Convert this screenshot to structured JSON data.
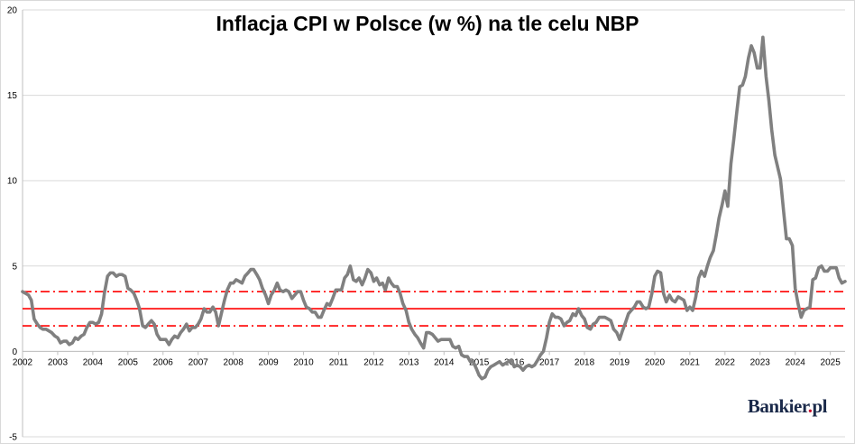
{
  "chart_data": {
    "type": "line",
    "title": "Inflacja CPI w Polsce (w %) na tle celu NBP",
    "xlabel": "",
    "ylabel": "",
    "ylim": [
      -5,
      20
    ],
    "xlim": [
      2002.0,
      2025.42
    ],
    "y_ticks": [
      -5,
      0,
      5,
      10,
      15,
      20
    ],
    "x_ticks": [
      "2002",
      "2003",
      "2004",
      "2005",
      "2006",
      "2007",
      "2008",
      "2009",
      "2010",
      "2011",
      "2012",
      "2013",
      "2014",
      "2015",
      "2016",
      "2017",
      "2018",
      "2019",
      "2020",
      "2021",
      "2022",
      "2023",
      "2024",
      "2025"
    ],
    "grid": "horizontal",
    "legend": "none",
    "series": [
      {
        "color": "#808080",
        "points": [
          [
            2002.0,
            3.5
          ],
          [
            2002.17,
            3.3
          ],
          [
            2002.25,
            3.0
          ],
          [
            2002.33,
            1.9
          ],
          [
            2002.42,
            1.6
          ],
          [
            2002.5,
            1.4
          ],
          [
            2002.58,
            1.3
          ],
          [
            2002.67,
            1.3
          ],
          [
            2002.75,
            1.2
          ],
          [
            2002.83,
            1.1
          ],
          [
            2002.92,
            0.9
          ],
          [
            2003.0,
            0.8
          ],
          [
            2003.08,
            0.5
          ],
          [
            2003.17,
            0.6
          ],
          [
            2003.25,
            0.6
          ],
          [
            2003.33,
            0.4
          ],
          [
            2003.42,
            0.5
          ],
          [
            2003.5,
            0.8
          ],
          [
            2003.58,
            0.7
          ],
          [
            2003.67,
            0.9
          ],
          [
            2003.75,
            1.0
          ],
          [
            2003.83,
            1.4
          ],
          [
            2003.92,
            1.7
          ],
          [
            2004.0,
            1.7
          ],
          [
            2004.08,
            1.6
          ],
          [
            2004.17,
            1.7
          ],
          [
            2004.25,
            2.2
          ],
          [
            2004.33,
            3.4
          ],
          [
            2004.42,
            4.4
          ],
          [
            2004.5,
            4.6
          ],
          [
            2004.58,
            4.6
          ],
          [
            2004.67,
            4.4
          ],
          [
            2004.75,
            4.5
          ],
          [
            2004.83,
            4.5
          ],
          [
            2004.92,
            4.4
          ],
          [
            2005.0,
            3.7
          ],
          [
            2005.08,
            3.6
          ],
          [
            2005.17,
            3.4
          ],
          [
            2005.25,
            3.0
          ],
          [
            2005.33,
            2.5
          ],
          [
            2005.42,
            1.5
          ],
          [
            2005.5,
            1.4
          ],
          [
            2005.58,
            1.6
          ],
          [
            2005.67,
            1.8
          ],
          [
            2005.75,
            1.6
          ],
          [
            2005.83,
            1.0
          ],
          [
            2005.92,
            0.7
          ],
          [
            2006.0,
            0.7
          ],
          [
            2006.08,
            0.7
          ],
          [
            2006.17,
            0.4
          ],
          [
            2006.25,
            0.7
          ],
          [
            2006.33,
            0.9
          ],
          [
            2006.42,
            0.8
          ],
          [
            2006.5,
            1.1
          ],
          [
            2006.58,
            1.3
          ],
          [
            2006.67,
            1.6
          ],
          [
            2006.75,
            1.2
          ],
          [
            2006.83,
            1.4
          ],
          [
            2006.92,
            1.4
          ],
          [
            2007.0,
            1.6
          ],
          [
            2007.08,
            1.9
          ],
          [
            2007.17,
            2.5
          ],
          [
            2007.25,
            2.3
          ],
          [
            2007.33,
            2.3
          ],
          [
            2007.42,
            2.6
          ],
          [
            2007.5,
            2.3
          ],
          [
            2007.58,
            1.5
          ],
          [
            2007.67,
            2.3
          ],
          [
            2007.75,
            3.0
          ],
          [
            2007.83,
            3.6
          ],
          [
            2007.92,
            4.0
          ],
          [
            2008.0,
            4.0
          ],
          [
            2008.08,
            4.2
          ],
          [
            2008.17,
            4.1
          ],
          [
            2008.25,
            4.0
          ],
          [
            2008.33,
            4.4
          ],
          [
            2008.42,
            4.6
          ],
          [
            2008.5,
            4.8
          ],
          [
            2008.58,
            4.8
          ],
          [
            2008.67,
            4.5
          ],
          [
            2008.75,
            4.2
          ],
          [
            2008.83,
            3.7
          ],
          [
            2008.92,
            3.3
          ],
          [
            2009.0,
            2.8
          ],
          [
            2009.08,
            3.3
          ],
          [
            2009.17,
            3.6
          ],
          [
            2009.25,
            4.0
          ],
          [
            2009.33,
            3.6
          ],
          [
            2009.42,
            3.5
          ],
          [
            2009.5,
            3.6
          ],
          [
            2009.58,
            3.5
          ],
          [
            2009.67,
            3.1
          ],
          [
            2009.75,
            3.3
          ],
          [
            2009.83,
            3.5
          ],
          [
            2009.92,
            3.5
          ],
          [
            2010.0,
            3.0
          ],
          [
            2010.08,
            2.6
          ],
          [
            2010.17,
            2.5
          ],
          [
            2010.25,
            2.3
          ],
          [
            2010.33,
            2.3
          ],
          [
            2010.42,
            2.0
          ],
          [
            2010.5,
            2.0
          ],
          [
            2010.58,
            2.4
          ],
          [
            2010.67,
            2.8
          ],
          [
            2010.75,
            2.7
          ],
          [
            2010.83,
            3.1
          ],
          [
            2010.92,
            3.6
          ],
          [
            2011.0,
            3.6
          ],
          [
            2011.08,
            3.6
          ],
          [
            2011.17,
            4.3
          ],
          [
            2011.25,
            4.5
          ],
          [
            2011.33,
            5.0
          ],
          [
            2011.42,
            4.2
          ],
          [
            2011.5,
            4.1
          ],
          [
            2011.58,
            4.3
          ],
          [
            2011.67,
            3.9
          ],
          [
            2011.75,
            4.3
          ],
          [
            2011.83,
            4.8
          ],
          [
            2011.92,
            4.6
          ],
          [
            2012.0,
            4.1
          ],
          [
            2012.08,
            4.3
          ],
          [
            2012.17,
            3.9
          ],
          [
            2012.25,
            4.0
          ],
          [
            2012.33,
            3.6
          ],
          [
            2012.42,
            4.3
          ],
          [
            2012.5,
            4.0
          ],
          [
            2012.58,
            3.8
          ],
          [
            2012.67,
            3.8
          ],
          [
            2012.75,
            3.4
          ],
          [
            2012.83,
            2.8
          ],
          [
            2012.92,
            2.4
          ],
          [
            2013.0,
            1.7
          ],
          [
            2013.08,
            1.3
          ],
          [
            2013.17,
            1.0
          ],
          [
            2013.25,
            0.8
          ],
          [
            2013.33,
            0.5
          ],
          [
            2013.42,
            0.2
          ],
          [
            2013.5,
            1.1
          ],
          [
            2013.58,
            1.1
          ],
          [
            2013.67,
            1.0
          ],
          [
            2013.75,
            0.8
          ],
          [
            2013.83,
            0.6
          ],
          [
            2013.92,
            0.7
          ],
          [
            2014.0,
            0.7
          ],
          [
            2014.08,
            0.7
          ],
          [
            2014.17,
            0.7
          ],
          [
            2014.25,
            0.3
          ],
          [
            2014.33,
            0.2
          ],
          [
            2014.42,
            0.3
          ],
          [
            2014.5,
            -0.2
          ],
          [
            2014.58,
            -0.3
          ],
          [
            2014.67,
            -0.3
          ],
          [
            2014.75,
            -0.6
          ],
          [
            2014.83,
            -0.6
          ],
          [
            2014.92,
            -1.0
          ],
          [
            2015.0,
            -1.4
          ],
          [
            2015.08,
            -1.6
          ],
          [
            2015.17,
            -1.5
          ],
          [
            2015.25,
            -1.1
          ],
          [
            2015.33,
            -0.9
          ],
          [
            2015.42,
            -0.8
          ],
          [
            2015.5,
            -0.7
          ],
          [
            2015.58,
            -0.6
          ],
          [
            2015.67,
            -0.8
          ],
          [
            2015.75,
            -0.7
          ],
          [
            2015.83,
            -0.6
          ],
          [
            2015.92,
            -0.5
          ],
          [
            2016.0,
            -0.9
          ],
          [
            2016.08,
            -0.8
          ],
          [
            2016.17,
            -0.9
          ],
          [
            2016.25,
            -1.1
          ],
          [
            2016.33,
            -0.9
          ],
          [
            2016.42,
            -0.8
          ],
          [
            2016.5,
            -0.9
          ],
          [
            2016.58,
            -0.8
          ],
          [
            2016.67,
            -0.5
          ],
          [
            2016.75,
            -0.2
          ],
          [
            2016.83,
            0.0
          ],
          [
            2016.92,
            0.8
          ],
          [
            2017.0,
            1.7
          ],
          [
            2017.08,
            2.2
          ],
          [
            2017.17,
            2.0
          ],
          [
            2017.25,
            2.0
          ],
          [
            2017.33,
            1.9
          ],
          [
            2017.42,
            1.5
          ],
          [
            2017.5,
            1.7
          ],
          [
            2017.58,
            1.8
          ],
          [
            2017.67,
            2.2
          ],
          [
            2017.75,
            2.1
          ],
          [
            2017.83,
            2.5
          ],
          [
            2017.92,
            2.1
          ],
          [
            2018.0,
            1.9
          ],
          [
            2018.08,
            1.4
          ],
          [
            2018.17,
            1.3
          ],
          [
            2018.25,
            1.6
          ],
          [
            2018.33,
            1.7
          ],
          [
            2018.42,
            2.0
          ],
          [
            2018.5,
            2.0
          ],
          [
            2018.58,
            2.0
          ],
          [
            2018.67,
            1.9
          ],
          [
            2018.75,
            1.8
          ],
          [
            2018.83,
            1.3
          ],
          [
            2018.92,
            1.1
          ],
          [
            2019.0,
            0.7
          ],
          [
            2019.08,
            1.2
          ],
          [
            2019.17,
            1.7
          ],
          [
            2019.25,
            2.2
          ],
          [
            2019.33,
            2.4
          ],
          [
            2019.42,
            2.6
          ],
          [
            2019.5,
            2.9
          ],
          [
            2019.58,
            2.9
          ],
          [
            2019.67,
            2.6
          ],
          [
            2019.75,
            2.5
          ],
          [
            2019.83,
            2.6
          ],
          [
            2019.92,
            3.4
          ],
          [
            2020.0,
            4.4
          ],
          [
            2020.08,
            4.7
          ],
          [
            2020.17,
            4.6
          ],
          [
            2020.25,
            3.4
          ],
          [
            2020.33,
            2.9
          ],
          [
            2020.42,
            3.3
          ],
          [
            2020.5,
            3.0
          ],
          [
            2020.58,
            2.9
          ],
          [
            2020.67,
            3.2
          ],
          [
            2020.75,
            3.1
          ],
          [
            2020.83,
            3.0
          ],
          [
            2020.92,
            2.4
          ],
          [
            2021.0,
            2.6
          ],
          [
            2021.08,
            2.4
          ],
          [
            2021.17,
            3.2
          ],
          [
            2021.25,
            4.3
          ],
          [
            2021.33,
            4.7
          ],
          [
            2021.42,
            4.4
          ],
          [
            2021.5,
            5.0
          ],
          [
            2021.58,
            5.5
          ],
          [
            2021.67,
            5.9
          ],
          [
            2021.75,
            6.8
          ],
          [
            2021.83,
            7.8
          ],
          [
            2021.92,
            8.6
          ],
          [
            2022.0,
            9.4
          ],
          [
            2022.08,
            8.5
          ],
          [
            2022.17,
            11.0
          ],
          [
            2022.25,
            12.4
          ],
          [
            2022.33,
            13.9
          ],
          [
            2022.42,
            15.5
          ],
          [
            2022.5,
            15.6
          ],
          [
            2022.58,
            16.1
          ],
          [
            2022.67,
            17.2
          ],
          [
            2022.75,
            17.9
          ],
          [
            2022.83,
            17.5
          ],
          [
            2022.92,
            16.6
          ],
          [
            2023.0,
            16.6
          ],
          [
            2023.08,
            18.4
          ],
          [
            2023.17,
            16.1
          ],
          [
            2023.25,
            14.7
          ],
          [
            2023.33,
            13.0
          ],
          [
            2023.42,
            11.5
          ],
          [
            2023.5,
            10.8
          ],
          [
            2023.58,
            10.1
          ],
          [
            2023.67,
            8.2
          ],
          [
            2023.75,
            6.6
          ],
          [
            2023.83,
            6.6
          ],
          [
            2023.92,
            6.2
          ],
          [
            2024.0,
            3.7
          ],
          [
            2024.08,
            2.8
          ],
          [
            2024.17,
            2.0
          ],
          [
            2024.25,
            2.4
          ],
          [
            2024.33,
            2.5
          ],
          [
            2024.42,
            2.6
          ],
          [
            2024.5,
            4.2
          ],
          [
            2024.58,
            4.3
          ],
          [
            2024.67,
            4.9
          ],
          [
            2024.75,
            5.0
          ],
          [
            2024.83,
            4.7
          ],
          [
            2024.92,
            4.7
          ],
          [
            2025.0,
            4.9
          ],
          [
            2025.08,
            4.9
          ],
          [
            2025.17,
            4.9
          ],
          [
            2025.25,
            4.3
          ],
          [
            2025.33,
            4.0
          ],
          [
            2025.42,
            4.1
          ]
        ]
      }
    ],
    "reference_lines": [
      {
        "y": 2.5,
        "style": "solid",
        "color": "#ff0000"
      },
      {
        "y": 3.5,
        "style": "dashdot",
        "color": "#ff0000"
      },
      {
        "y": 1.5,
        "style": "dashdot",
        "color": "#ff0000"
      }
    ]
  },
  "watermark": {
    "logo_text": "Bankier.pl"
  }
}
